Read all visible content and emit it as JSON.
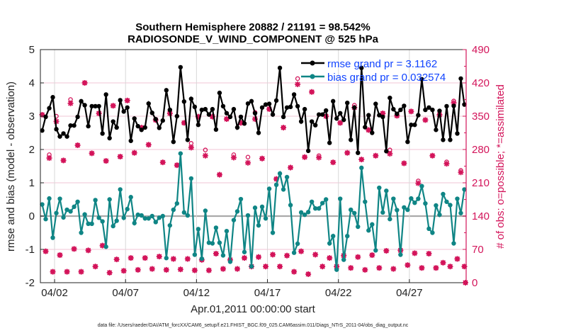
{
  "chart_data": {
    "type": "line",
    "title": "Southern Hemisphere 20882 / 21191 = 98.542%",
    "subtitle": "RADIOSONDE_V_WIND_COMPONENT @ 525 hPa",
    "xlabel": "Apr.01,2011 00:00:00 start",
    "ylabel": "rmse and bias (model - observation)",
    "ylabel_right": "# of obs: o=possible; *=assimilated",
    "xlim_days": [
      0,
      30
    ],
    "ylim": [
      -2,
      5
    ],
    "ylim_right": [
      0,
      490
    ],
    "xticks": [
      {
        "day": 1,
        "label": "04/02"
      },
      {
        "day": 6,
        "label": "04/07"
      },
      {
        "day": 11,
        "label": "04/12"
      },
      {
        "day": 16,
        "label": "04/17"
      },
      {
        "day": 21,
        "label": "04/22"
      },
      {
        "day": 26,
        "label": "04/27"
      }
    ],
    "yticks": [
      "-2",
      "-1",
      "0",
      "1",
      "2",
      "3",
      "4",
      "5"
    ],
    "yticks_right": [
      "0",
      "70",
      "140",
      "210",
      "280",
      "350",
      "420",
      "490"
    ],
    "grid": true,
    "legend_placement": "top-right",
    "time_start_days": 0.125,
    "time_step_days": 0.25,
    "series": [
      {
        "name": "rmse grand pr = 3.1162",
        "color": "#000000",
        "values": [
          2.57,
          2.98,
          3.24,
          3.57,
          2.61,
          2.39,
          2.48,
          2.39,
          2.72,
          2.72,
          2.98,
          3.45,
          3.33,
          2.7,
          3.3,
          3.3,
          3.3,
          2.48,
          3.65,
          2.34,
          2.84,
          2.66,
          3.48,
          3.14,
          3.26,
          2.26,
          2.93,
          2.7,
          2.59,
          2.66,
          3.38,
          3.1,
          2.91,
          2.65,
          2.87,
          3.78,
          3.19,
          2.23,
          3.0,
          4.47,
          3.44,
          2.29,
          3.52,
          3.28,
          2.74,
          3.19,
          3.21,
          3.05,
          3.21,
          2.6,
          3.7,
          3.3,
          3.09,
          2.98,
          3.21,
          2.66,
          2.98,
          2.78,
          3.38,
          3.45,
          3.09,
          2.5,
          3.26,
          3.35,
          3.37,
          3.05,
          3.47,
          4.45,
          2.98,
          3.26,
          3.28,
          3.65,
          3.3,
          2.84,
          3.21,
          1.96,
          2.84,
          2.73,
          3.05,
          3.05,
          3.17,
          2.2,
          3.45,
          2.93,
          3.09,
          2.89,
          3.4,
          2.29,
          3.26,
          1.9,
          4.45,
          2.67,
          3.03,
          2.5,
          3.37,
          3.03,
          2.98,
          1.95,
          3.55,
          3.21,
          3.07,
          3.19,
          3.31,
          2.23,
          2.74,
          2.74,
          3.03,
          4.11,
          3.19,
          3.26,
          3.19,
          2.59,
          3.16,
          2.29,
          3.3,
          2.29,
          3.31,
          2.48,
          4.13,
          3.35
        ]
      },
      {
        "name": "bias grand pr = 0.032574",
        "color": "#0f8585",
        "values": [
          0.35,
          -0.09,
          0.53,
          -0.65,
          0.09,
          0.52,
          -0.04,
          0.19,
          0.14,
          0.28,
          0.43,
          -0.5,
          0.05,
          -0.23,
          -0.23,
          0.48,
          -0.05,
          -0.16,
          -0.92,
          0.5,
          -0.3,
          -0.14,
          0.8,
          -0.05,
          0.21,
          0.57,
          -0.21,
          0.04,
          0.02,
          -0.07,
          -0.07,
          0.0,
          -0.18,
          -0.05,
          0.0,
          -1.26,
          -0.28,
          0.19,
          0.38,
          1.88,
          0.11,
          0.02,
          1.13,
          -1.16,
          -0.39,
          -1.28,
          0.16,
          -0.8,
          -0.82,
          -0.35,
          -0.8,
          -1.18,
          -0.45,
          -1.37,
          -0.12,
          0.14,
          0.51,
          -1.08,
          0.02,
          -1.51,
          0.25,
          -0.28,
          0.28,
          -0.07,
          0.82,
          -0.5,
          0.94,
          1.28,
          0.8,
          1.17,
          0.33,
          -1.1,
          -0.83,
          0.11,
          0.04,
          0.12,
          0.43,
          0.23,
          0.23,
          0.39,
          0.5,
          -0.82,
          -0.6,
          -1.61,
          0.52,
          -1.31,
          -0.6,
          0.19,
          0.09,
          -0.32,
          1.45,
          0.43,
          -0.43,
          -0.25,
          -1.03,
          0.85,
          0.11,
          0.76,
          -0.09,
          0.52,
          0.18,
          -1.16,
          0.26,
          0.19,
          0.53,
          0.4,
          0.52,
          0.9,
          0.38,
          -0.38,
          -0.5,
          0.32,
          0.04,
          0.66,
          0.43,
          0.33,
          -0.82,
          0.52,
          0.09,
          0.8
        ]
      }
    ],
    "obs_color": "#d3145a",
    "obs_possible": [
      353,
      66,
      269,
      23,
      350,
      58,
      257,
      23,
      385,
      71,
      289,
      23,
      420,
      68,
      272,
      34,
      356,
      78,
      256,
      21,
      372,
      49,
      265,
      25,
      383,
      52,
      273,
      27,
      326,
      52,
      290,
      29,
      342,
      55,
      253,
      27,
      356,
      50,
      247,
      28,
      336,
      50,
      293,
      26,
      349,
      48,
      279,
      26,
      349,
      61,
      227,
      29,
      344,
      48,
      269,
      29,
      336,
      52,
      264,
      34,
      358,
      54,
      261,
      34,
      365,
      59,
      218,
      34,
      326,
      57,
      242,
      23,
      429,
      66,
      264,
      18,
      401,
      59,
      267,
      34,
      350,
      52,
      253,
      34,
      336,
      57,
      273,
      31,
      373,
      54,
      259,
      27,
      321,
      58,
      267,
      31,
      356,
      67,
      279,
      29,
      351,
      68,
      251,
      37,
      360,
      62,
      214,
      31,
      342,
      61,
      267,
      31,
      353,
      42,
      254,
      34,
      382,
      50,
      236,
      34,
      0
    ],
    "obs_assimilated": [
      353,
      66,
      262,
      23,
      339,
      58,
      257,
      23,
      377,
      71,
      289,
      23,
      420,
      68,
      272,
      34,
      356,
      78,
      256,
      21,
      372,
      49,
      265,
      25,
      383,
      52,
      273,
      27,
      326,
      52,
      290,
      29,
      342,
      55,
      253,
      27,
      356,
      50,
      247,
      28,
      336,
      50,
      284,
      26,
      349,
      48,
      267,
      26,
      349,
      61,
      227,
      29,
      344,
      48,
      263,
      29,
      336,
      52,
      252,
      34,
      344,
      54,
      261,
      34,
      365,
      59,
      218,
      34,
      326,
      57,
      242,
      23,
      417,
      66,
      264,
      18,
      401,
      59,
      263,
      34,
      350,
      52,
      253,
      34,
      336,
      57,
      273,
      31,
      368,
      54,
      259,
      27,
      321,
      58,
      267,
      31,
      356,
      67,
      271,
      29,
      351,
      68,
      251,
      37,
      360,
      62,
      209,
      31,
      342,
      61,
      267,
      31,
      353,
      42,
      250,
      34,
      378,
      50,
      232,
      34,
      0
    ]
  },
  "footer": "data file: /Users/raeder/DAI/ATM_forcXX/CAM6_setup/f.e21.FHIST_BGC.f09_025.CAM6assim.011/Diags_NTrS_2011-04/obs_diag_output.nc"
}
